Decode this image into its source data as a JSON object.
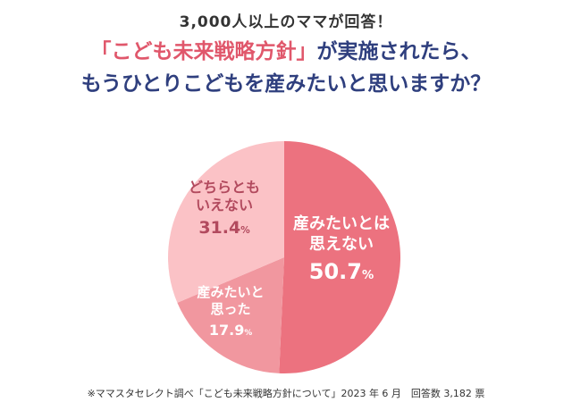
{
  "header": {
    "subtitle": "3,000人以上のママが回答！",
    "question_highlight": "「こども未来戦略方針」",
    "question_rest": "が実施されたら、",
    "question_line2": "もうひとりこどもを産みたいと思いますか？"
  },
  "chart_data": {
    "type": "pie",
    "start": "top",
    "direction": "clockwise",
    "slices": [
      {
        "label_lines": [
          "産みたいとは",
          "思えない"
        ],
        "value": 50.7,
        "value_text": "50.7",
        "unit": "%",
        "color": "#ec727f"
      },
      {
        "label_lines": [
          "産みたいと",
          "思った"
        ],
        "value": 17.9,
        "value_text": "17.9",
        "unit": "%",
        "color": "#f1979f"
      },
      {
        "label_lines": [
          "どちらとも",
          "いえない"
        ],
        "value": 31.4,
        "value_text": "31.4",
        "unit": "%",
        "color": "#fbc2c6"
      }
    ]
  },
  "footer": {
    "source": "※ママスタセレクト調べ「こども未来戦略方針について」2023 年 6 月　回答数 3,182 票"
  }
}
